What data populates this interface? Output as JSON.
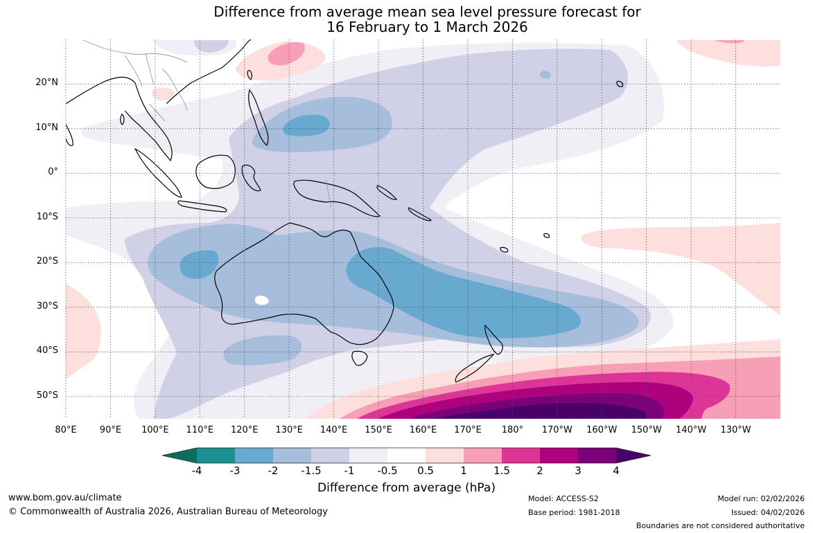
{
  "title": {
    "line1": "Difference from average mean sea level pressure forecast for",
    "line2": "16 February to 1 March 2026"
  },
  "map": {
    "lat_labels": [
      "20°N",
      "10°N",
      "0°",
      "10°S",
      "20°S",
      "30°S",
      "40°S",
      "50°S"
    ],
    "lon_labels": [
      "80°E",
      "90°E",
      "100°E",
      "110°E",
      "120°E",
      "130°E",
      "140°E",
      "150°E",
      "160°E",
      "170°E",
      "180°",
      "170°W",
      "160°W",
      "150°W",
      "140°W",
      "130°W"
    ],
    "lat_values": [
      20,
      10,
      0,
      -10,
      -20,
      -30,
      -40,
      -50
    ],
    "lon_values": [
      80,
      90,
      100,
      110,
      120,
      130,
      140,
      150,
      160,
      170,
      180,
      190,
      200,
      210,
      220,
      230
    ],
    "extent": {
      "lon": [
        80,
        240
      ],
      "lat": [
        -55,
        30
      ]
    }
  },
  "colorbar": {
    "title": "Difference from average (hPa)",
    "ticks": [
      "-4",
      "-3",
      "-2",
      "-1.5",
      "-1",
      "-0.5",
      "0.5",
      "1",
      "1.5",
      "2",
      "3",
      "4"
    ],
    "colors": {
      "lt_-4": "#0a6e5d",
      "-4_-3": "#1a9190",
      "-3_-2": "#67a9cf",
      "-2_-1.5": "#a6bddb",
      "-1.5_-1": "#d0d1e6",
      "-1_-0.5": "#f1eef6",
      "-0.5_0.5": "#ffffff",
      "0.5_1": "#fde0dd",
      "1_1.5": "#f79fb6",
      "1.5_2": "#dd3497",
      "2_3": "#ae017e",
      "3_4": "#7a0177",
      "gt_4": "#49006a"
    }
  },
  "footer": {
    "website": "www.bom.gov.au/climate",
    "copyright": "© Commonwealth of Australia 2026, Australian Bureau of Meteorology",
    "model": "Model: ACCESS-S2",
    "base_period": "Base period: 1981-2018",
    "model_run": "Model run: 02/02/2026",
    "issued": "Issued: 04/02/2026",
    "disclaimer": "Boundaries are not considered authoritative"
  }
}
